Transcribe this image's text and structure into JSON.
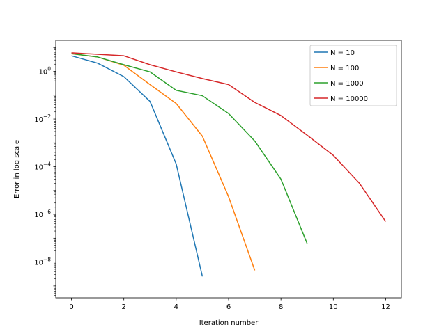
{
  "chart_data": {
    "type": "line",
    "title": "",
    "xlabel": "Iteration number",
    "ylabel": "Error in log scale",
    "xlim": [
      -0.6,
      12.6
    ],
    "ylim_log10": [
      -9.5,
      1.3
    ],
    "y_scale": "log",
    "grid": false,
    "legend_position": "top-right",
    "x_ticks": [
      0,
      2,
      4,
      6,
      8,
      10,
      12
    ],
    "y_tick_exponents": [
      -8,
      -6,
      -4,
      -2,
      0
    ],
    "series": [
      {
        "name": "N = 10",
        "color": "#1f77b4",
        "x": [
          0,
          1,
          2,
          3,
          4,
          5
        ],
        "y": [
          4.5,
          2.2,
          0.6,
          0.055,
          0.00013,
          2.5e-09
        ]
      },
      {
        "name": "N = 100",
        "color": "#ff7f0e",
        "x": [
          0,
          1,
          2,
          3,
          4,
          5,
          6,
          7
        ],
        "y": [
          5.5,
          4.0,
          1.8,
          0.28,
          0.045,
          0.0019,
          5.5e-06,
          4.5e-09
        ]
      },
      {
        "name": "N = 1000",
        "color": "#2ca02c",
        "x": [
          0,
          1,
          2,
          3,
          4,
          5,
          6,
          7,
          8,
          9
        ],
        "y": [
          5.5,
          4.0,
          1.9,
          0.95,
          0.16,
          0.095,
          0.017,
          0.0012,
          3e-05,
          6e-08
        ]
      },
      {
        "name": "N = 10000",
        "color": "#d62728",
        "x": [
          0,
          1,
          2,
          3,
          4,
          5,
          6,
          7,
          8,
          9,
          10,
          11,
          12
        ],
        "y": [
          6.0,
          5.2,
          4.5,
          1.9,
          0.95,
          0.5,
          0.28,
          0.05,
          0.014,
          0.0021,
          0.0003,
          2e-05,
          5e-07
        ]
      }
    ]
  }
}
